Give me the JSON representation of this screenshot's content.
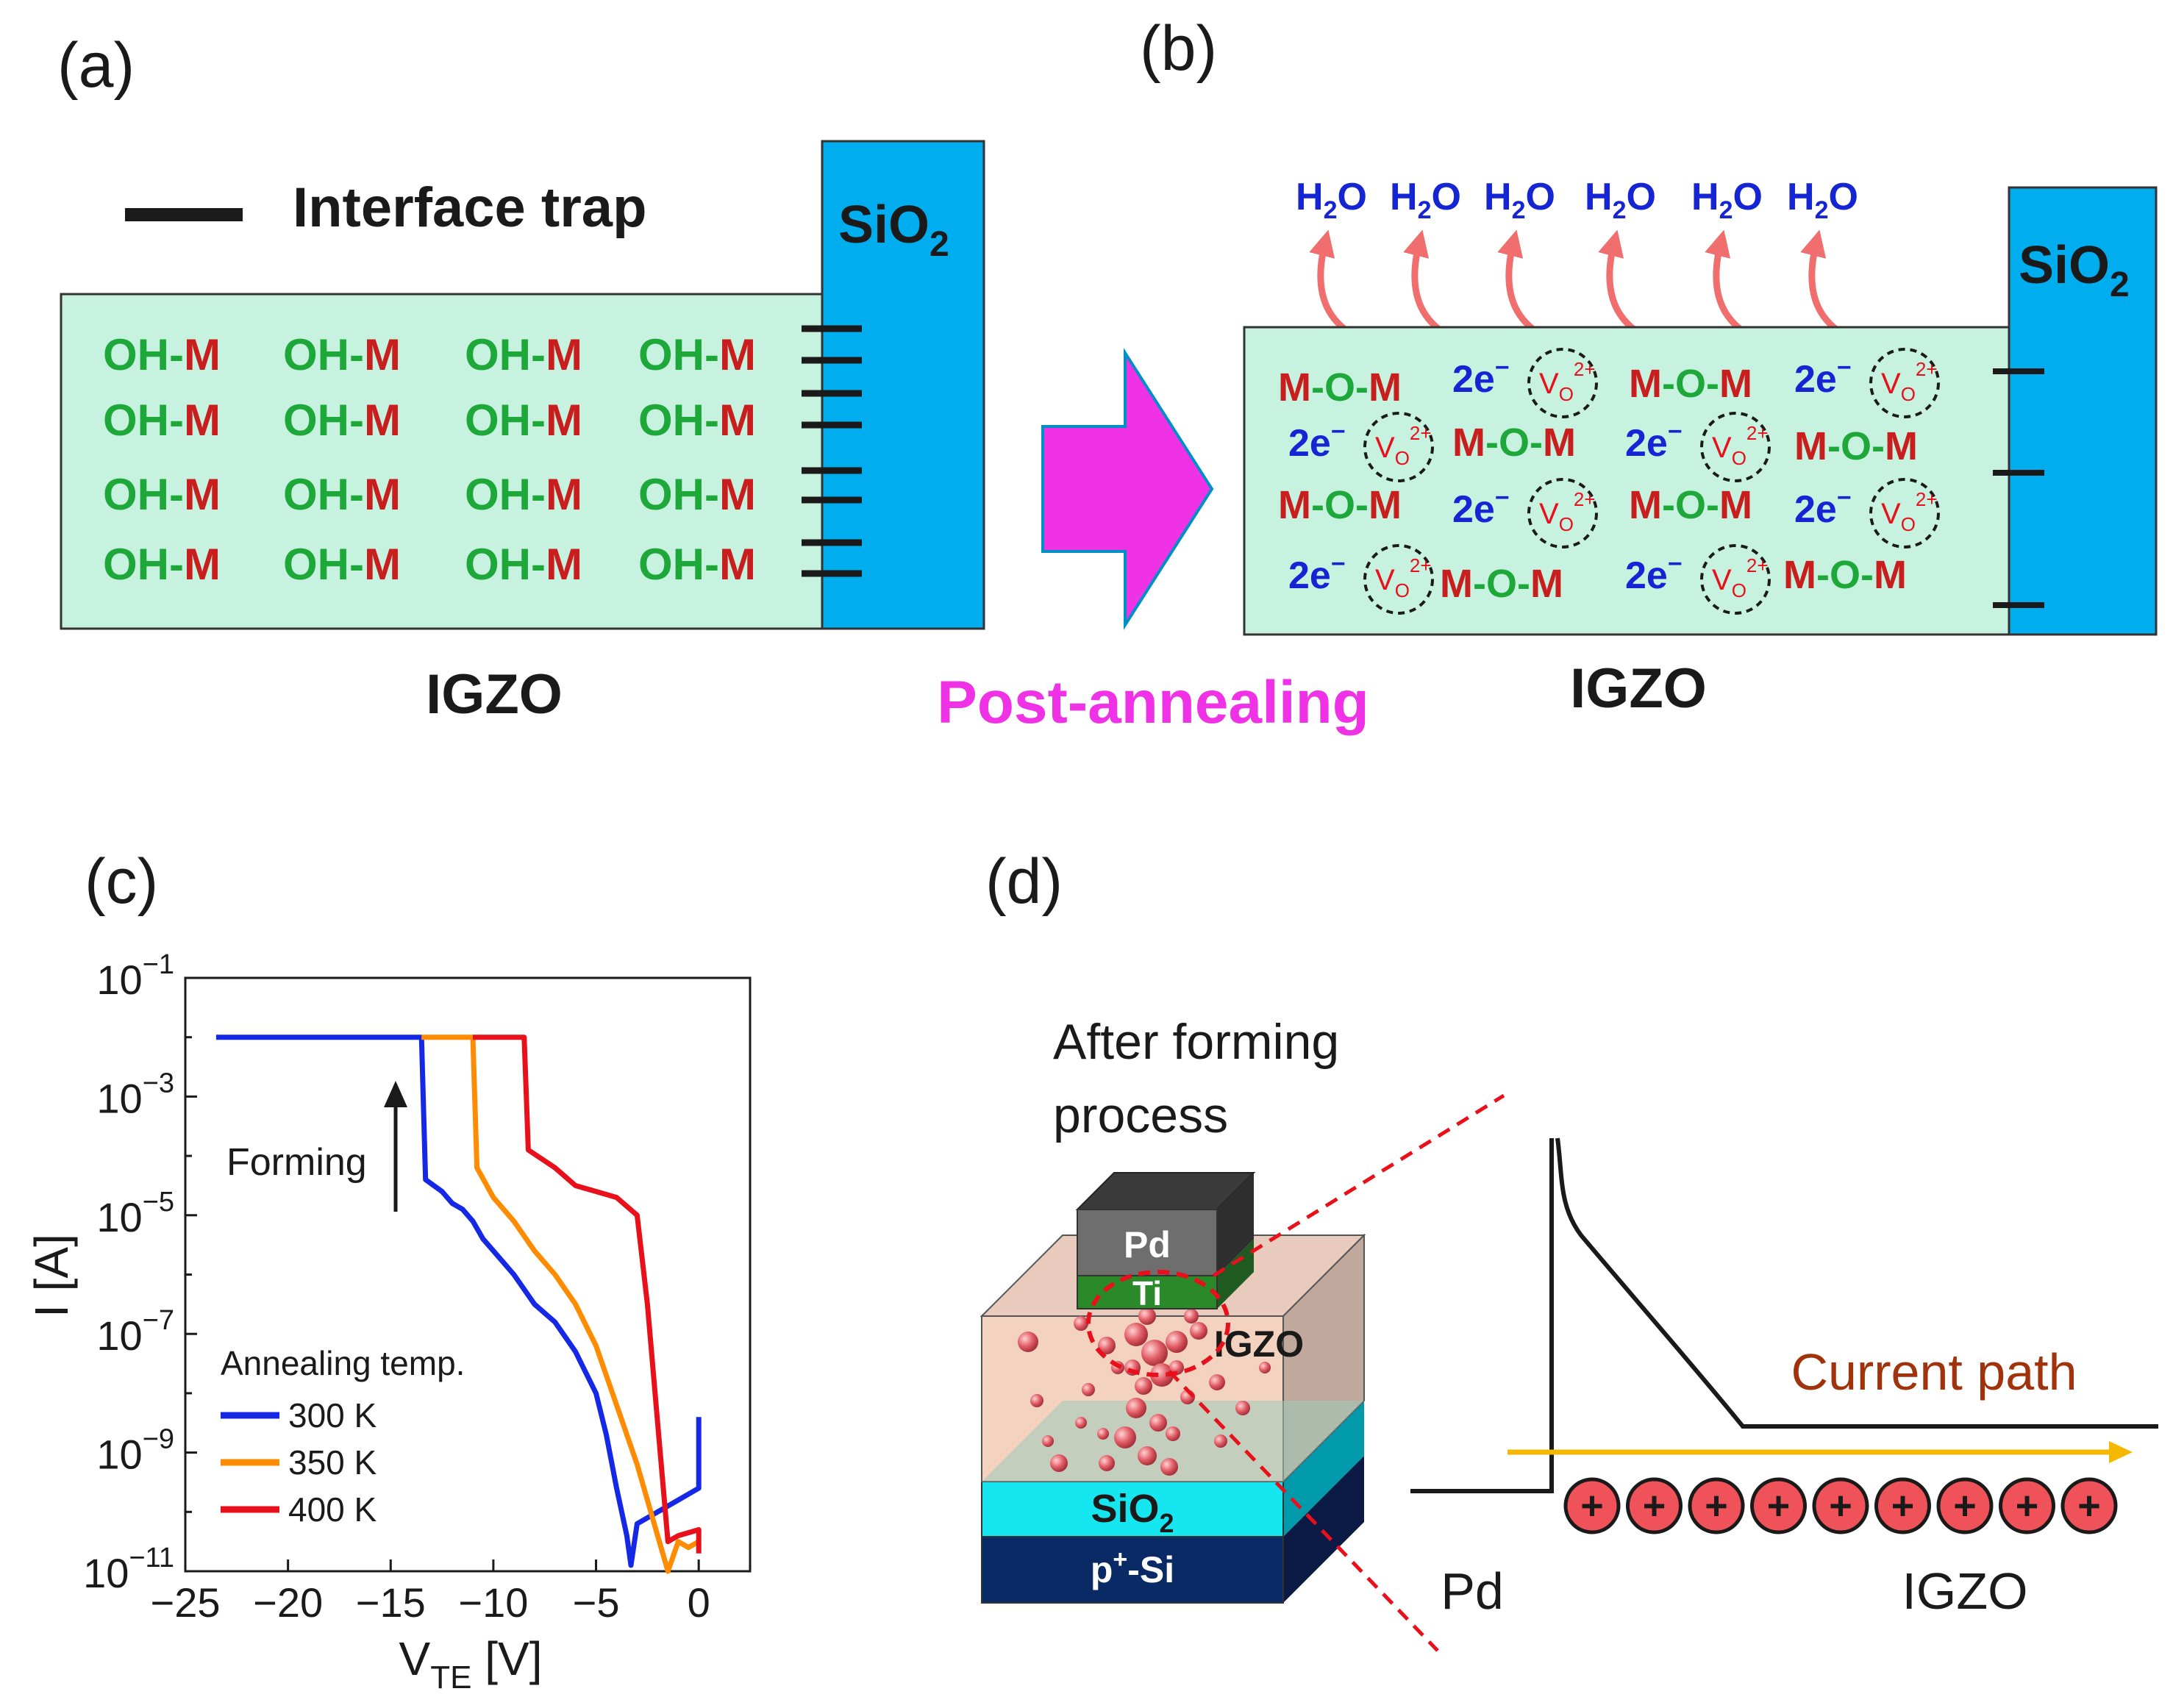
{
  "panel_labels": {
    "a": "(a)",
    "b": "(b)",
    "c": "(c)",
    "d": "(d)"
  },
  "panel_a": {
    "legend_label": "Interface trap",
    "oxide_label_base": "SiO",
    "oxide_label_sub": "2",
    "layer_label": "IGZO",
    "species_oh": "OH-",
    "species_m": "M"
  },
  "transition": {
    "label": "Post-annealing"
  },
  "panel_b": {
    "h2o_base": "H",
    "h2o_sub": "2",
    "h2o_tail": "O",
    "oxide_label_base": "SiO",
    "oxide_label_sub": "2",
    "layer_label": "IGZO",
    "mom_m": "M",
    "mom_dash_o": "-O-",
    "electron_base": "2e",
    "electron_sup": "−",
    "vacancy_base": "V",
    "vacancy_sub": "O",
    "vacancy_sup": "2+"
  },
  "panel_c": {
    "ylabel": "I [A]",
    "xlabel_base": "V",
    "xlabel_sub": "TE",
    "xlabel_unit": " [V]",
    "y_tick_base": "10",
    "forming_label": "Forming",
    "legend_title": "Annealing temp.",
    "colors": {
      "300 K": "#1528e6",
      "350 K": "#ff8c00",
      "400 K": "#e8101a"
    }
  },
  "chart_data": {
    "type": "line",
    "title": "",
    "xlabel": "V_TE [V]",
    "ylabel": "I [A]",
    "xlim": [
      -25,
      2.5
    ],
    "ylim": [
      -11,
      -1
    ],
    "y_scale": "log",
    "x_ticks": [
      -25,
      -20,
      -15,
      -10,
      -5,
      0
    ],
    "y_ticks_exp": [
      -1,
      -3,
      -5,
      -7,
      -9,
      -11
    ],
    "legend_title": "Annealing temp.",
    "series": [
      {
        "name": "300 K",
        "color": "#1528e6",
        "points": [
          [
            -23.5,
            -2
          ],
          [
            -13.5,
            -2
          ],
          [
            -13.3,
            -4.4
          ],
          [
            -12.5,
            -4.6
          ],
          [
            -12,
            -4.8
          ],
          [
            -11.5,
            -4.9
          ],
          [
            -11,
            -5.1
          ],
          [
            -10.5,
            -5.4
          ],
          [
            -10,
            -5.6
          ],
          [
            -9,
            -6
          ],
          [
            -8,
            -6.5
          ],
          [
            -7,
            -6.8
          ],
          [
            -6,
            -7.3
          ],
          [
            -5,
            -8
          ],
          [
            -4.5,
            -8.7
          ],
          [
            -4,
            -9.6
          ],
          [
            -3.5,
            -10.4
          ],
          [
            -3.3,
            -10.9
          ],
          [
            -3,
            -10.2
          ],
          [
            -2,
            -10
          ],
          [
            -1,
            -9.8
          ],
          [
            0,
            -9.6
          ],
          [
            0,
            -8.4
          ]
        ]
      },
      {
        "name": "350 K",
        "color": "#ff8c00",
        "points": [
          [
            -13.5,
            -2
          ],
          [
            -11,
            -2
          ],
          [
            -10.8,
            -4.2
          ],
          [
            -10,
            -4.7
          ],
          [
            -9,
            -5.1
          ],
          [
            -8,
            -5.6
          ],
          [
            -7,
            -6
          ],
          [
            -6,
            -6.5
          ],
          [
            -5,
            -7.2
          ],
          [
            -4,
            -8.2
          ],
          [
            -3,
            -9.2
          ],
          [
            -2,
            -10.4
          ],
          [
            -1.5,
            -11
          ],
          [
            -1,
            -10.5
          ],
          [
            -0.5,
            -10.6
          ],
          [
            0,
            -10.5
          ]
        ]
      },
      {
        "name": "400 K",
        "color": "#e8101a",
        "points": [
          [
            -11,
            -2
          ],
          [
            -8.5,
            -2
          ],
          [
            -8.3,
            -3.9
          ],
          [
            -7,
            -4.2
          ],
          [
            -6,
            -4.5
          ],
          [
            -5,
            -4.6
          ],
          [
            -4,
            -4.7
          ],
          [
            -3,
            -5
          ],
          [
            -2.5,
            -6.5
          ],
          [
            -2,
            -8.5
          ],
          [
            -1.5,
            -10.5
          ],
          [
            -1,
            -10.4
          ],
          [
            0,
            -10.3
          ],
          [
            0,
            -10.7
          ]
        ]
      }
    ]
  },
  "panel_d": {
    "title_line1": "After forming",
    "title_line2": "process",
    "layer_pd": "Pd",
    "layer_ti": "Ti",
    "layer_igzo": "IGZO",
    "layer_sio2_base": "SiO",
    "layer_sio2_sub": "2",
    "layer_psi_base": "p",
    "layer_psi_sup": "+",
    "layer_psi_tail": "-Si",
    "current_label": "Current path",
    "band_left_label": "Pd",
    "band_right_label": "IGZO",
    "charge_symbol": "+"
  }
}
